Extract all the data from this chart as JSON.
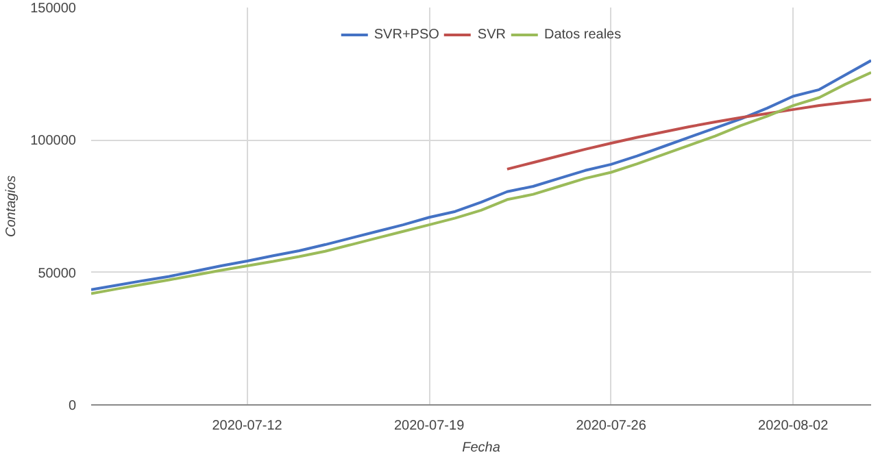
{
  "chart_data": {
    "type": "line",
    "xlabel": "Fecha",
    "ylabel": "Contagios",
    "x": [
      "2020-07-06",
      "2020-07-07",
      "2020-07-08",
      "2020-07-09",
      "2020-07-10",
      "2020-07-11",
      "2020-07-12",
      "2020-07-13",
      "2020-07-14",
      "2020-07-15",
      "2020-07-16",
      "2020-07-17",
      "2020-07-18",
      "2020-07-19",
      "2020-07-20",
      "2020-07-21",
      "2020-07-22",
      "2020-07-23",
      "2020-07-24",
      "2020-07-25",
      "2020-07-26",
      "2020-07-27",
      "2020-07-28",
      "2020-07-29",
      "2020-07-30",
      "2020-07-31",
      "2020-08-01",
      "2020-08-02",
      "2020-08-03",
      "2020-08-04",
      "2020-08-05"
    ],
    "series": [
      {
        "name": "SVR+PSO",
        "color": "#4472c4",
        "values": [
          43500,
          45200,
          46900,
          48500,
          50500,
          52500,
          54300,
          56300,
          58200,
          60500,
          63000,
          65500,
          68000,
          70800,
          73000,
          76500,
          80500,
          82500,
          85500,
          88500,
          90800,
          94000,
          97500,
          101000,
          104500,
          108000,
          112000,
          116500,
          119000,
          124500,
          130000
        ]
      },
      {
        "name": "SVR",
        "color": "#c0504d",
        "values": [
          null,
          null,
          null,
          null,
          null,
          null,
          null,
          null,
          null,
          null,
          null,
          null,
          null,
          null,
          null,
          null,
          89000,
          91500,
          94000,
          96500,
          98800,
          101000,
          103000,
          105000,
          106800,
          108500,
          110000,
          111500,
          113000,
          114200,
          115300
        ]
      },
      {
        "name": "Datos reales",
        "color": "#9bbb59",
        "values": [
          42000,
          43800,
          45500,
          47200,
          49000,
          50800,
          52500,
          54200,
          56000,
          58000,
          60500,
          63000,
          65500,
          68000,
          70500,
          73500,
          77500,
          79500,
          82500,
          85500,
          87800,
          91000,
          94500,
          98000,
          101500,
          105500,
          109000,
          113000,
          116000,
          121000,
          125500
        ]
      }
    ],
    "xlim": [
      "2020-07-06",
      "2020-08-05"
    ],
    "xticks": [
      "2020-07-12",
      "2020-07-19",
      "2020-07-26",
      "2020-08-02"
    ],
    "ylim": [
      0,
      150000
    ],
    "yticks": [
      0,
      50000,
      100000,
      150000
    ],
    "grid": true,
    "legend": "top",
    "marker": "none",
    "line_style": "solid"
  }
}
